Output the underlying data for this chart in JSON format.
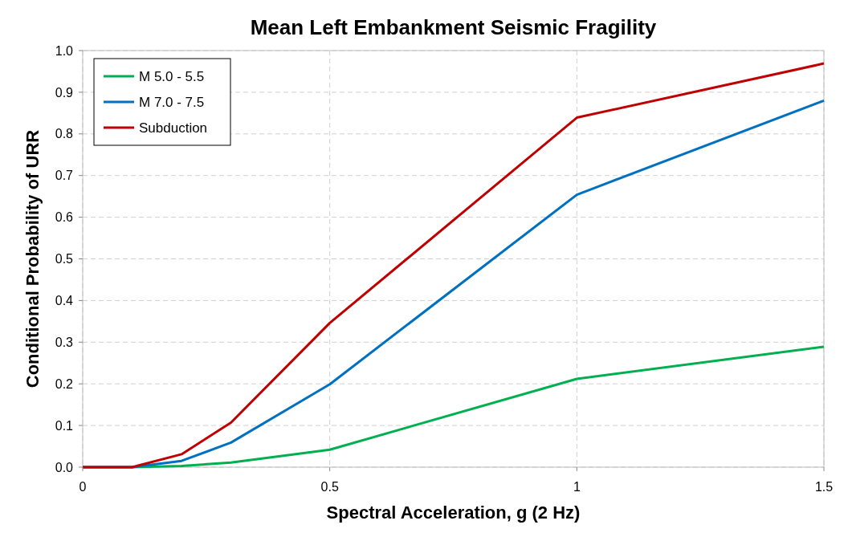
{
  "chart_data": {
    "type": "line",
    "title": "Mean Left Embankment Seismic Fragility",
    "xlabel": "Spectral Acceleration, g (2 Hz)",
    "ylabel": "Conditional Probability of URR",
    "x": [
      0,
      0.1,
      0.2,
      0.3,
      0.5,
      1,
      1.5
    ],
    "series": [
      {
        "name": "M 5.0 - 5.5",
        "color": "#00b050",
        "values": [
          0,
          0,
          0.003,
          0.011,
          0.042,
          0.212,
          0.289
        ]
      },
      {
        "name": "M 7.0 - 7.5",
        "color": "#0070c0",
        "values": [
          0,
          0,
          0.015,
          0.059,
          0.199,
          0.654,
          0.88
        ]
      },
      {
        "name": "Subduction",
        "color": "#c00000",
        "values": [
          0,
          0,
          0.031,
          0.107,
          0.346,
          0.839,
          0.969
        ]
      }
    ],
    "xlim": [
      0,
      1.5
    ],
    "xticks": [
      0,
      0.5,
      1,
      1.5
    ],
    "ylim": [
      0,
      1
    ],
    "yticks": [
      {
        "value": 0,
        "label": "0.0"
      },
      0.1,
      0.2,
      0.3,
      0.4,
      0.5,
      0.6,
      0.7,
      0.8,
      0.9,
      {
        "value": 1,
        "label": "1.0"
      }
    ],
    "grid": true,
    "legend": "top left",
    "marker": "none",
    "line_style": "solid"
  }
}
